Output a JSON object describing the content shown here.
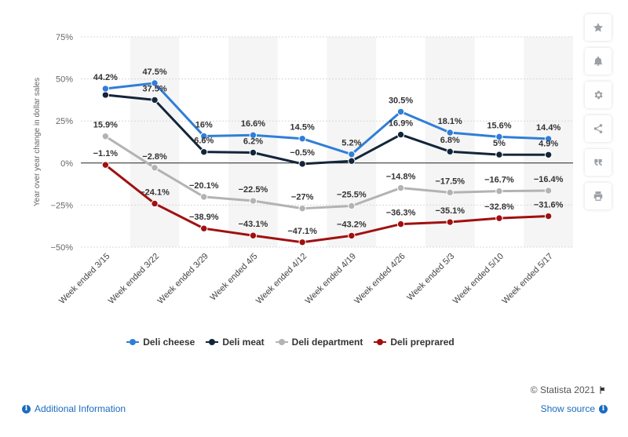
{
  "chart_data": {
    "type": "line",
    "title": "",
    "xlabel": "",
    "ylabel": "Year over year change in dollar sales",
    "ylim": [
      -50,
      75
    ],
    "yticks": [
      75,
      50,
      25,
      0,
      -25,
      -50
    ],
    "ytick_labels": [
      "75%",
      "50%",
      "25%",
      "0%",
      "−25%",
      "−50%"
    ],
    "categories": [
      "Week ended 3/15",
      "Week ended 3/22",
      "Week ended 3/29",
      "Week ended 4/5",
      "Week ended 4/12",
      "Week ended 4/19",
      "Week ended 4/26",
      "Week ended 5/3",
      "Week ended 5/10",
      "Week ended 5/17"
    ],
    "grid": true,
    "legend_position": "bottom",
    "series": [
      {
        "name": "Deli cheese",
        "color": "#2f7ed8",
        "values": [
          44.2,
          47.5,
          16,
          16.6,
          14.5,
          5.2,
          30.5,
          18.1,
          15.6,
          14.4
        ],
        "labels": [
          "44.2%",
          "47.5%",
          "16%",
          "16.6%",
          "14.5%",
          "5.2%",
          "30.5%",
          "18.1%",
          "15.6%",
          "14.4%"
        ]
      },
      {
        "name": "Deli meat",
        "color": "#13253a",
        "values": [
          40.5,
          37.5,
          6.6,
          6.2,
          -0.5,
          1.2,
          16.9,
          6.8,
          5,
          4.9
        ],
        "labels": [
          "",
          "37.5%",
          "6.6%",
          "6.2%",
          "−0.5%",
          "",
          "16.9%",
          "6.8%",
          "5%",
          "4.9%"
        ]
      },
      {
        "name": "Deli department",
        "color": "#b3b3b3",
        "values": [
          15.9,
          -2.8,
          -20.1,
          -22.5,
          -27,
          -25.5,
          -14.8,
          -17.5,
          -16.7,
          -16.4
        ],
        "labels": [
          "15.9%",
          "−2.8%",
          "−20.1%",
          "−22.5%",
          "−27%",
          "−25.5%",
          "−14.8%",
          "−17.5%",
          "−16.7%",
          "−16.4%"
        ]
      },
      {
        "name": "Deli preprared",
        "color": "#a01010",
        "values": [
          -1.1,
          -24.1,
          -38.9,
          -43.1,
          -47.1,
          -43.2,
          -36.3,
          -35.1,
          -32.8,
          -31.6
        ],
        "labels": [
          "−1.1%",
          "−24.1%",
          "−38.9%",
          "−43.1%",
          "−47.1%",
          "−43.2%",
          "−36.3%",
          "−35.1%",
          "−32.8%",
          "−31.6%"
        ]
      }
    ]
  },
  "toolbar": {
    "icons": [
      "star-icon",
      "bell-icon",
      "gear-icon",
      "share-icon",
      "quote-icon",
      "print-icon"
    ]
  },
  "footer": {
    "copyright": "© Statista 2021",
    "additional_info": "Additional Information",
    "show_source": "Show source"
  }
}
